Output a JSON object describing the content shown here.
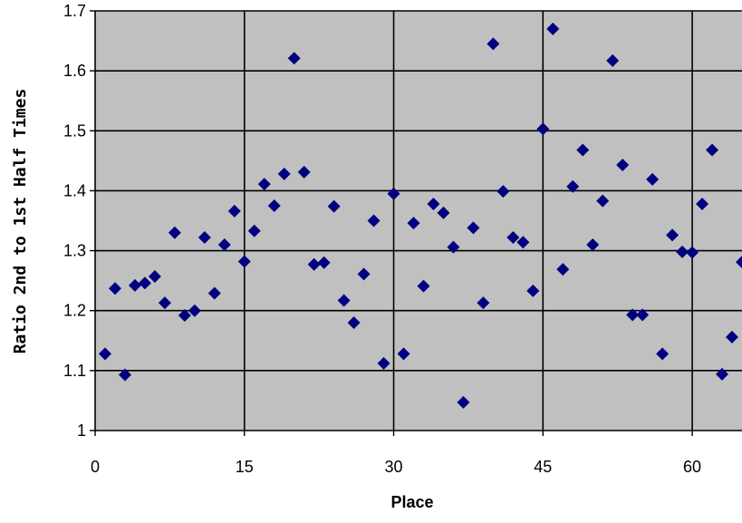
{
  "chart_data": {
    "type": "scatter",
    "title": "",
    "xlabel": "Place",
    "ylabel": "Ratio 2nd to 1st Half Times",
    "xlim": [
      0,
      65
    ],
    "ylim": [
      1.0,
      1.7
    ],
    "xticks": [
      "0",
      "15",
      "30",
      "45",
      "60"
    ],
    "xtick_values": [
      0,
      15,
      30,
      45,
      60
    ],
    "yticks": [
      "1",
      "1.1",
      "1.2",
      "1.3",
      "1.4",
      "1.5",
      "1.6",
      "1.7"
    ],
    "ytick_values": [
      1.0,
      1.1,
      1.2,
      1.3,
      1.4,
      1.5,
      1.6,
      1.7
    ],
    "grid": true,
    "legend": "none",
    "marker": "diamond",
    "colors": {
      "marker": "#000080",
      "plot_bg": "#c0c0c0",
      "grid": "#000000"
    },
    "x": [
      1,
      2,
      3,
      4,
      5,
      6,
      7,
      8,
      9,
      10,
      11,
      12,
      13,
      14,
      15,
      16,
      17,
      18,
      19,
      20,
      21,
      22,
      23,
      24,
      25,
      26,
      27,
      28,
      29,
      30,
      31,
      32,
      33,
      34,
      35,
      36,
      37,
      38,
      39,
      40,
      41,
      42,
      43,
      44,
      45,
      46,
      47,
      48,
      49,
      50,
      51,
      52,
      53,
      54,
      55,
      56,
      57,
      58,
      59,
      60,
      61,
      62,
      63,
      64,
      65
    ],
    "y": [
      1.128,
      1.237,
      1.093,
      1.242,
      1.246,
      1.257,
      1.213,
      1.33,
      1.192,
      1.2,
      1.322,
      1.229,
      1.31,
      1.366,
      1.282,
      1.333,
      1.411,
      1.375,
      1.428,
      1.621,
      1.431,
      1.277,
      1.28,
      1.374,
      1.217,
      1.18,
      1.261,
      1.35,
      1.112,
      1.395,
      1.128,
      1.346,
      1.241,
      1.378,
      1.363,
      1.306,
      1.047,
      1.338,
      1.213,
      1.645,
      1.399,
      1.322,
      1.314,
      1.233,
      1.503,
      1.67,
      1.269,
      1.407,
      1.468,
      1.31,
      1.383,
      1.617,
      1.443,
      1.193,
      1.193,
      1.419,
      1.128,
      1.326,
      1.298,
      1.297,
      1.378,
      1.468,
      1.094,
      1.156,
      1.281
    ]
  }
}
